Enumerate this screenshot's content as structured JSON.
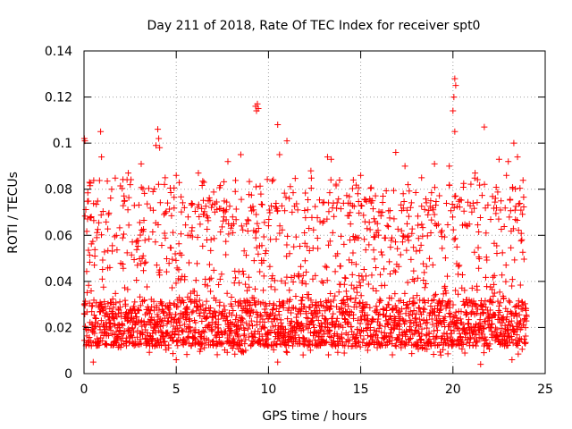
{
  "chart_data": {
    "type": "scatter",
    "title": "Day 211 of 2018, Rate Of TEC Index for receiver spt0",
    "xlabel": "GPS time / hours",
    "ylabel": "ROTI / TECUs",
    "xlim": [
      0,
      25
    ],
    "ylim": [
      0,
      0.14
    ],
    "xticks": [
      0,
      5,
      10,
      15,
      20,
      25
    ],
    "xtick_labels": [
      "0",
      "5",
      "10",
      "15",
      "20",
      "25"
    ],
    "yticks": [
      0,
      0.02,
      0.04,
      0.06,
      0.08,
      0.1,
      0.12,
      0.14
    ],
    "ytick_labels": [
      "0",
      "0.02",
      "0.04",
      "0.06",
      "0.08",
      "0.1",
      "0.12",
      "0.14"
    ],
    "grid": true,
    "marker": "+",
    "color": "#ff0000",
    "series": [
      {
        "name": "ROTI",
        "x_range": [
          0,
          24
        ],
        "typical_range": [
          0.008,
          0.075
        ],
        "points": [
          [
            0.02,
            0.102
          ],
          [
            0.05,
            0.101
          ],
          [
            0.9,
            0.105
          ],
          [
            0.95,
            0.094
          ],
          [
            2.4,
            0.087
          ],
          [
            3.1,
            0.091
          ],
          [
            3.9,
            0.099
          ],
          [
            4.0,
            0.106
          ],
          [
            4.05,
            0.102
          ],
          [
            4.1,
            0.098
          ],
          [
            5.0,
            0.086
          ],
          [
            6.2,
            0.087
          ],
          [
            7.8,
            0.092
          ],
          [
            8.5,
            0.095
          ],
          [
            9.3,
            0.116
          ],
          [
            9.35,
            0.114
          ],
          [
            9.4,
            0.117
          ],
          [
            9.45,
            0.115
          ],
          [
            10.5,
            0.108
          ],
          [
            10.6,
            0.095
          ],
          [
            11.0,
            0.101
          ],
          [
            13.2,
            0.094
          ],
          [
            13.4,
            0.093
          ],
          [
            15.0,
            0.086
          ],
          [
            16.9,
            0.096
          ],
          [
            17.4,
            0.09
          ],
          [
            19.0,
            0.091
          ],
          [
            19.8,
            0.09
          ],
          [
            20.0,
            0.114
          ],
          [
            20.05,
            0.12
          ],
          [
            20.1,
            0.128
          ],
          [
            20.15,
            0.125
          ],
          [
            20.1,
            0.105
          ],
          [
            21.7,
            0.107
          ],
          [
            22.5,
            0.093
          ],
          [
            23.0,
            0.092
          ],
          [
            23.3,
            0.1
          ],
          [
            23.5,
            0.094
          ],
          [
            0.3,
            0.083
          ],
          [
            1.5,
            0.08
          ],
          [
            4.4,
            0.085
          ],
          [
            6.5,
            0.083
          ],
          [
            8.2,
            0.079
          ],
          [
            12.3,
            0.088
          ],
          [
            14.6,
            0.084
          ],
          [
            18.3,
            0.085
          ],
          [
            21.2,
            0.087
          ],
          [
            22.9,
            0.086
          ],
          [
            0.5,
            0.005
          ],
          [
            5.0,
            0.006
          ],
          [
            10.5,
            0.005
          ],
          [
            21.5,
            0.004
          ],
          [
            23.2,
            0.006
          ]
        ]
      }
    ]
  }
}
